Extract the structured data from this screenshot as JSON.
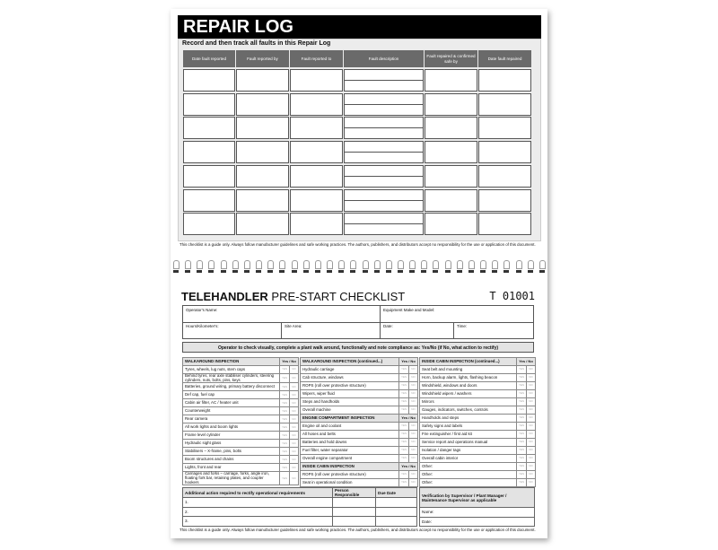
{
  "repair_log": {
    "title": "REPAIR LOG",
    "subtitle": "Record and then track all faults in this Repair Log",
    "columns": [
      "Date fault reported",
      "Fault reported by",
      "Fault reported to",
      "Fault description",
      "Fault repaired & confirmed safe by",
      "Date fault repaired"
    ],
    "disclaimer": "This checklist is a guide only. Always follow manufacturer guidelines and safe working practices. The authors, publishers, and distributors accept no responsibility for the use or application of this document."
  },
  "checklist": {
    "title_bold": "TELEHANDLER",
    "title_rest": " PRE-START CHECKLIST",
    "serial": "T  01001",
    "fields": {
      "operator": "Operator's Name:",
      "equipment": "Equipment Make and Model:",
      "hours": "Hours/Kilometer's:",
      "site": "Site Area:",
      "date": "Date:",
      "time": "Time:"
    },
    "instruction": "Operator to check visually, complete a plant walk around, functionally and note compliance as: Yes/No (if No, what action to rectify)",
    "yes_no": "Yes / No",
    "yes": "YES",
    "no": "NO",
    "col1": [
      {
        "header": "WALKAROUND INSPECTION",
        "items": [
          "Tyres, wheels, lug nuts, stem caps",
          "Behind tyres, rear axle stabiliser cylinders, steering cylinders, nuts, bolts, pins, keys",
          "Batteries, ground wiring, primary battery disconnect",
          "Def cap, fuel cap",
          "Cabin air filter, AC / heater unit",
          "Counterweight",
          "Rear camera",
          "All work lights and boom lights",
          "Frame level cylinder",
          "Hydraulic sight glass",
          "Stabilisers – X-frame, pins, bolts",
          "Boom structures and chains",
          "Lights, front and rear",
          "Carriages and forks – carriage, forks, angle iron, floating fork bar, retaining plates, and coupler hookers"
        ]
      }
    ],
    "col2": [
      {
        "header": "WALKAROUND INSPECTION (continued...)",
        "items": [
          "Hydraulic carriage",
          "Cab structure, windows",
          "ROPS (roll over protective structure)",
          "Wipers, wiper fluid",
          "Steps and handholds",
          "Overall machine"
        ]
      },
      {
        "header": "ENGINE COMPARTMENT INSPECTION",
        "items": [
          "Engine oil and coolant",
          "All hoses and belts",
          "Batteries and hold downs",
          "Fuel filter, water separator",
          "Overall engine compartment"
        ]
      },
      {
        "header": "INSIDE CABIN INSPECTION",
        "items": [
          "ROPS (roll over protective structure)",
          "Seat in operational condition"
        ]
      }
    ],
    "col3": [
      {
        "header": "INSIDE CABIN INSPECTION (continued...)",
        "items": [
          "Seat belt and mounting",
          "Horn, backup alarm, lights, flashing beacon",
          "Windshield, windows and doors",
          "Windshield wipers / washers",
          "Mirrors",
          "Gauges, indicators, switches, controls",
          "Handholds and steps",
          "Safety signs and labels",
          "Fire extinguisher / first aid kit",
          "Service report and operations manual",
          "Isolation / danger tags",
          "Overall cabin interior",
          "Other:",
          "Other:",
          "Other:"
        ]
      }
    ],
    "actions": {
      "header": "Additional action required to rectify operational requirements",
      "person": "Person Responsible",
      "due": "Due Date",
      "rows": [
        "1.",
        "2.",
        "3."
      ]
    },
    "verification": {
      "header": "Verification by Supervisor / Plant Manager / Maintenance Supervisor as applicable",
      "name": "Name:",
      "date": "Date:"
    },
    "disclaimer": "This checklist is a guide only. Always follow manufacturer guidelines and safe working practices. The authors, publishers, and distributors accept no responsibility for the use or application of this document."
  }
}
